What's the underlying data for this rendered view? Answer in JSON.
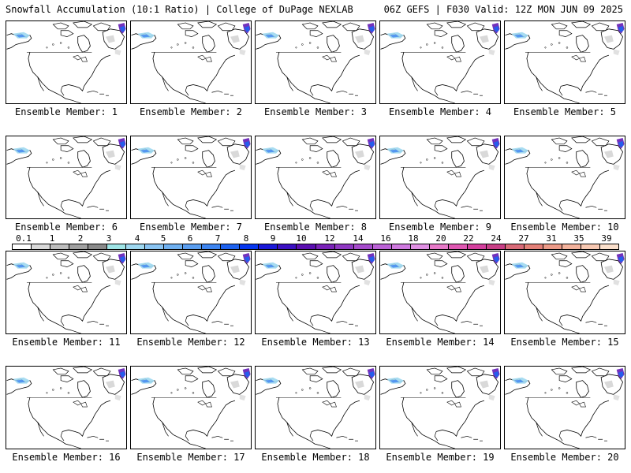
{
  "header": {
    "title": "Snowfall Accumulation (10:1 Ratio) | College of DuPage NEXLAB",
    "run_info": "06Z GEFS | F030 Valid: 12Z MON JUN 09 2025"
  },
  "members": [
    {
      "label": "Ensemble Member: 1"
    },
    {
      "label": "Ensemble Member: 2"
    },
    {
      "label": "Ensemble Member: 3"
    },
    {
      "label": "Ensemble Member: 4"
    },
    {
      "label": "Ensemble Member: 5"
    },
    {
      "label": "Ensemble Member: 6"
    },
    {
      "label": "Ensemble Member: 7"
    },
    {
      "label": "Ensemble Member: 8"
    },
    {
      "label": "Ensemble Member: 9"
    },
    {
      "label": "Ensemble Member: 10"
    },
    {
      "label": "Ensemble Member: 11"
    },
    {
      "label": "Ensemble Member: 12"
    },
    {
      "label": "Ensemble Member: 13"
    },
    {
      "label": "Ensemble Member: 14"
    },
    {
      "label": "Ensemble Member: 15"
    },
    {
      "label": "Ensemble Member: 16"
    },
    {
      "label": "Ensemble Member: 17"
    },
    {
      "label": "Ensemble Member: 18"
    },
    {
      "label": "Ensemble Member: 19"
    },
    {
      "label": "Ensemble Member: 20"
    }
  ],
  "colorbar": {
    "labels": [
      "0.1",
      "1",
      "2",
      "3",
      "4",
      "5",
      "6",
      "7",
      "8",
      "9",
      "10",
      "12",
      "14",
      "16",
      "18",
      "20",
      "22",
      "24",
      "27",
      "31",
      "35",
      "39"
    ],
    "colors": [
      "#ffffff",
      "#d9d9d9",
      "#bdbdbd",
      "#a0a0a0",
      "#8a8a8a",
      "#9fe5e6",
      "#9fd8f0",
      "#8ac4f2",
      "#6fb0f0",
      "#5a9ef0",
      "#3e85f0",
      "#1e62ef",
      "#0636ee",
      "#1a18d8",
      "#3b10c2",
      "#5a0eb0",
      "#7a22b8",
      "#8f38c2",
      "#a64ccc",
      "#bb62d6",
      "#cf7adf",
      "#e090e3",
      "#e77ac8",
      "#df58b2",
      "#d4409e",
      "#c83f86",
      "#d86a78",
      "#e38078",
      "#ec9a88",
      "#f3b29c",
      "#f7c8b2",
      "#fbe0cc"
    ]
  }
}
